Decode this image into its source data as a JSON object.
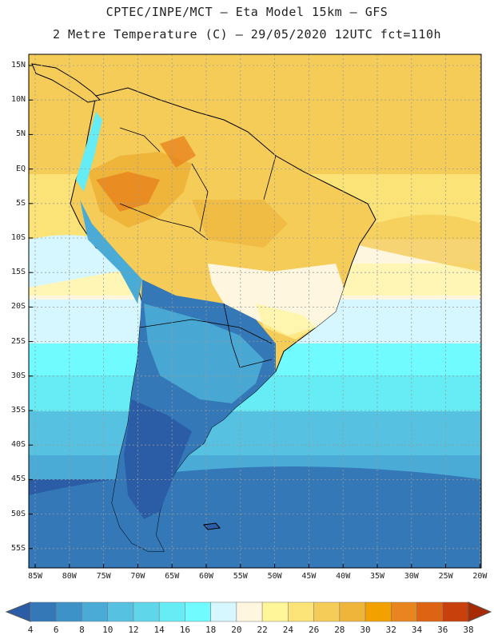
{
  "title_line1": "CPTEC/INPE/MCT –  Eta Model 15km – GFS",
  "title_line2": "2 Metre Temperature (C) – 29/05/2020 12UTC fct=110h",
  "lat_labels": [
    "15N",
    "10N",
    "5N",
    "EQ",
    "5S",
    "10S",
    "15S",
    "20S",
    "25S",
    "30S",
    "35S",
    "40S",
    "45S",
    "50S",
    "55S"
  ],
  "lon_labels": [
    "85W",
    "80W",
    "75W",
    "70W",
    "65W",
    "60W",
    "55W",
    "50W",
    "45W",
    "40W",
    "35W",
    "30W",
    "25W",
    "20W"
  ],
  "colorbar": {
    "labels": [
      "4",
      "6",
      "8",
      "10",
      "12",
      "14",
      "16",
      "18",
      "20",
      "22",
      "24",
      "26",
      "28",
      "30",
      "32",
      "34",
      "36",
      "38"
    ],
    "colors": [
      "#2a5da6",
      "#3478b8",
      "#3d92c8",
      "#4aacd6",
      "#56c1e0",
      "#60d6ea",
      "#66ecf4",
      "#6ffbff",
      "#d6f7ff",
      "#fff6df",
      "#fff599",
      "#fbe377",
      "#f5cc58",
      "#eeb53a",
      "#f2a100",
      "#e8851e",
      "#dc6412",
      "#c8400c",
      "#a82a04"
    ]
  },
  "colors": {
    "land_border": "#000000",
    "grid": "#9a9a9a"
  }
}
